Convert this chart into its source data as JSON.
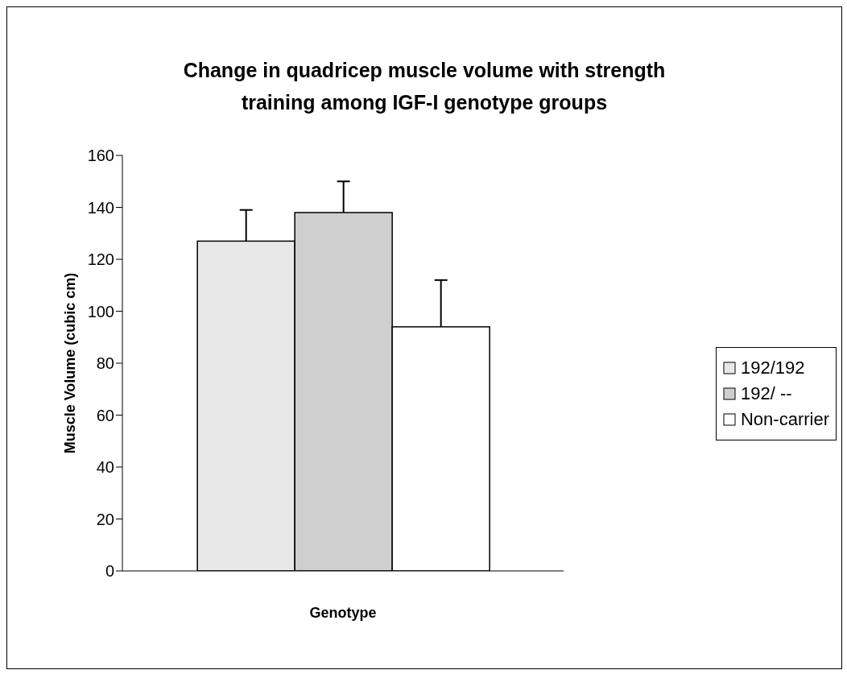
{
  "chart_data": {
    "type": "bar",
    "title": "Change in quadricep muscle volume with strength training among IGF-I genotype groups",
    "xlabel": "Genotype",
    "ylabel": "Muscle Volume (cubic cm)",
    "categories": [
      null
    ],
    "series": [
      {
        "name": "192/192",
        "color": "#e8e8e8",
        "values": [
          127
        ],
        "errors": [
          [
            127,
            139
          ]
        ]
      },
      {
        "name": "192/ --",
        "color": "#cfcfcf",
        "values": [
          138
        ],
        "errors": [
          [
            138,
            150
          ]
        ]
      },
      {
        "name": "Non-carrier",
        "color": "#ffffff",
        "values": [
          94
        ],
        "errors": [
          [
            94,
            112
          ]
        ]
      }
    ],
    "ylim": [
      0,
      160
    ],
    "yticks": [
      0,
      20,
      40,
      60,
      80,
      100,
      120,
      140,
      160
    ],
    "grid": false,
    "legend": "right"
  }
}
